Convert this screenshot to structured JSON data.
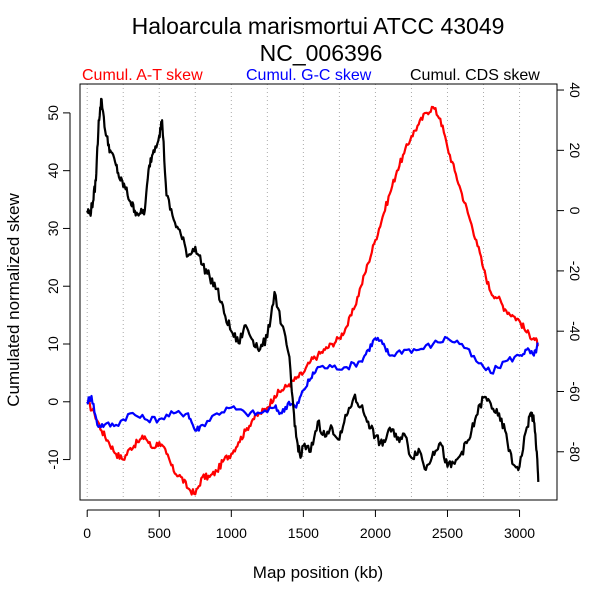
{
  "chart_data": {
    "type": "line",
    "title": "Haloarcula marismortui ATCC 43049",
    "subtitle": "NC_006396",
    "xlabel": "Map position (kb)",
    "ylabel": "Cumulated normalized skew",
    "xlim": [
      -50,
      3260
    ],
    "ylim": [
      -17,
      55
    ],
    "y2lim": [
      -96,
      42
    ],
    "grid": "vertical dotted",
    "x_ticks": [
      0,
      500,
      1000,
      1500,
      2000,
      2500,
      3000
    ],
    "y_ticks": [
      -10,
      0,
      10,
      20,
      30,
      40,
      50
    ],
    "y2_ticks": [
      -80,
      -60,
      -40,
      -20,
      0,
      20,
      40
    ],
    "grid_x": [
      0,
      250,
      500,
      750,
      1000,
      1250,
      1500,
      1750,
      2000,
      2250,
      2500,
      2750,
      3000
    ],
    "legend": [
      {
        "label": "Cumul. A-T skew",
        "color": "#ff0000"
      },
      {
        "label": "Cumul. G-C skew",
        "color": "#0000ff"
      },
      {
        "label": "Cumul. CDS skew",
        "color": "#000000"
      }
    ],
    "series": [
      {
        "name": "Cumul. A-T skew",
        "color": "#ff0000",
        "axis": "left",
        "x": [
          0,
          50,
          100,
          150,
          200,
          250,
          300,
          350,
          400,
          450,
          500,
          550,
          600,
          650,
          700,
          750,
          800,
          850,
          900,
          950,
          1000,
          1050,
          1100,
          1150,
          1200,
          1250,
          1300,
          1350,
          1400,
          1450,
          1500,
          1550,
          1600,
          1650,
          1700,
          1750,
          1800,
          1850,
          1900,
          1950,
          2000,
          2050,
          2100,
          2150,
          2200,
          2250,
          2300,
          2350,
          2400,
          2450,
          2500,
          2550,
          2600,
          2650,
          2700,
          2750,
          2800,
          2850,
          2900,
          2950,
          3000,
          3050,
          3100,
          3130
        ],
        "values": [
          0,
          -2,
          -5,
          -7,
          -9,
          -10,
          -8,
          -7,
          -6,
          -8,
          -7,
          -9,
          -12,
          -13,
          -15,
          -16,
          -13,
          -13,
          -12,
          -10,
          -9,
          -7,
          -5,
          -3,
          -2,
          -1,
          1,
          2,
          3,
          4,
          5,
          7,
          8,
          9,
          10,
          11,
          13,
          16,
          20,
          24,
          28,
          32,
          36,
          40,
          43,
          46,
          48,
          50,
          51,
          49,
          44,
          40,
          36,
          32,
          28,
          23,
          19,
          18,
          16,
          15,
          14,
          12,
          11,
          10
        ]
      },
      {
        "name": "Cumul. G-C skew",
        "color": "#0000ff",
        "axis": "left",
        "x": [
          0,
          30,
          70,
          120,
          200,
          300,
          400,
          500,
          600,
          700,
          750,
          800,
          900,
          1000,
          1100,
          1200,
          1300,
          1350,
          1400,
          1450,
          1500,
          1550,
          1600,
          1700,
          1800,
          1900,
          1950,
          2000,
          2050,
          2100,
          2200,
          2300,
          2400,
          2500,
          2600,
          2700,
          2800,
          2900,
          3000,
          3050,
          3100,
          3130
        ],
        "values": [
          0,
          1,
          -4,
          -4,
          -4,
          -2,
          -3,
          -3,
          -2,
          -2,
          -5,
          -4,
          -2,
          -1,
          -2,
          -2,
          -1,
          -2,
          0,
          -1,
          2,
          4,
          6,
          6,
          6,
          7,
          9,
          11,
          10,
          8,
          9,
          9,
          10,
          11,
          10,
          7,
          5,
          7,
          8,
          9,
          8,
          10
        ]
      },
      {
        "name": "Cumul. CDS skew",
        "color": "#000000",
        "axis": "right",
        "x": [
          0,
          20,
          40,
          60,
          80,
          100,
          130,
          160,
          200,
          230,
          260,
          300,
          330,
          370,
          400,
          430,
          460,
          500,
          520,
          550,
          600,
          650,
          700,
          750,
          800,
          850,
          900,
          950,
          1000,
          1050,
          1100,
          1150,
          1200,
          1250,
          1300,
          1350,
          1400,
          1420,
          1450,
          1480,
          1500,
          1550,
          1600,
          1650,
          1700,
          1750,
          1800,
          1850,
          1900,
          1950,
          2000,
          2050,
          2100,
          2150,
          2200,
          2250,
          2300,
          2350,
          2400,
          2450,
          2500,
          2550,
          2600,
          2650,
          2700,
          2750,
          2800,
          2850,
          2900,
          2950,
          3000,
          3050,
          3080,
          3100,
          3120,
          3130
        ],
        "values": [
          0,
          -1,
          3,
          10,
          30,
          37,
          25,
          20,
          15,
          10,
          8,
          3,
          0,
          -1,
          0,
          15,
          20,
          25,
          30,
          5,
          -3,
          -8,
          -15,
          -12,
          -18,
          -22,
          -26,
          -34,
          -40,
          -44,
          -38,
          -43,
          -46,
          -42,
          -27,
          -38,
          -48,
          -60,
          -75,
          -82,
          -78,
          -80,
          -70,
          -75,
          -72,
          -76,
          -68,
          -62,
          -65,
          -70,
          -75,
          -78,
          -72,
          -76,
          -74,
          -82,
          -79,
          -86,
          -80,
          -77,
          -85,
          -84,
          -80,
          -76,
          -68,
          -62,
          -64,
          -68,
          -73,
          -84,
          -85,
          -72,
          -67,
          -70,
          -80,
          -90
        ]
      }
    ]
  }
}
